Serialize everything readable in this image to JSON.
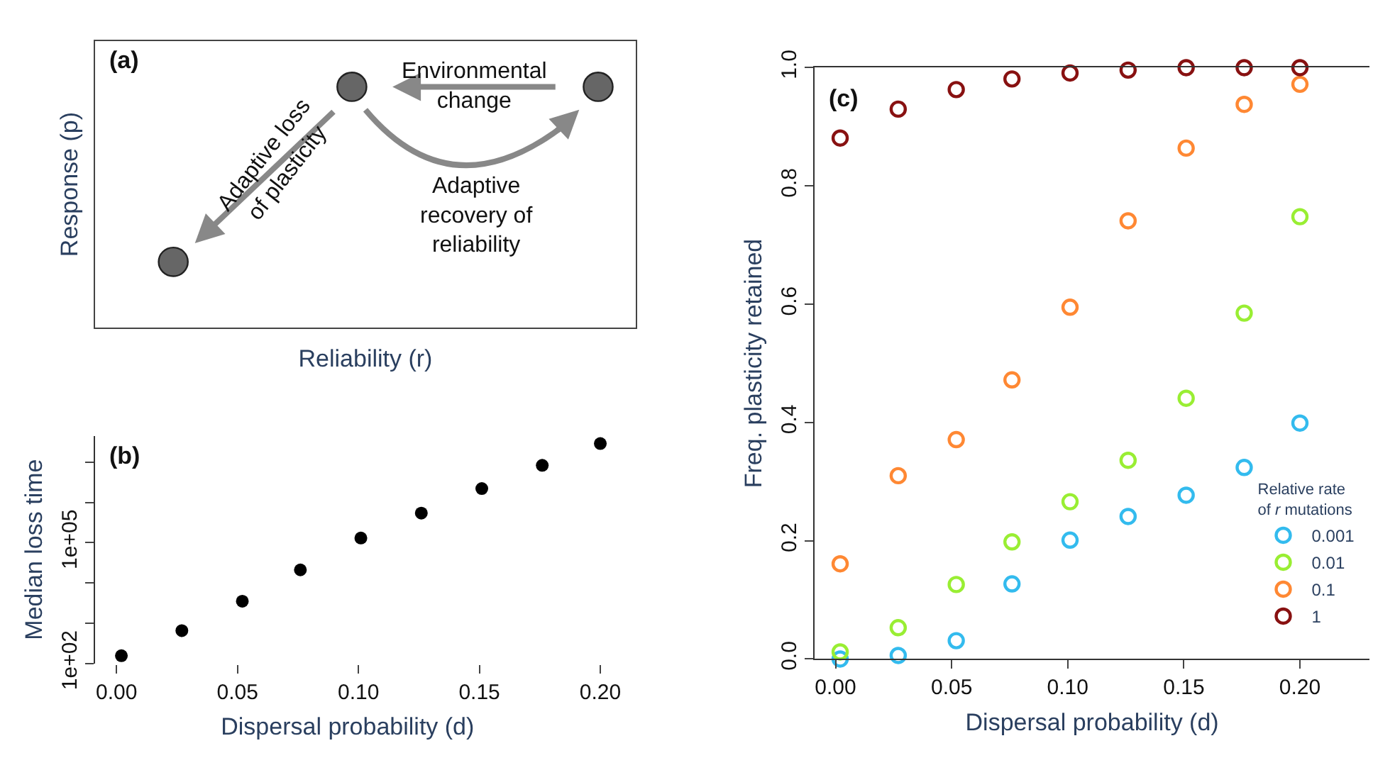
{
  "chart_data": [
    {
      "type": "other",
      "title": "(a)",
      "xlabel": "Reliability (r)",
      "ylabel": "Response (p)",
      "annotations": [
        "Environmental\nchange",
        "Adaptive loss\nof plasticity",
        "Adaptive\nrecovery of\nreliability"
      ]
    },
    {
      "type": "scatter",
      "title": "(b)",
      "xlabel": "Dispersal probability (d)",
      "ylabel": "Median loss time",
      "log": "y",
      "marker": "circle",
      "x": [
        0.002,
        0.027,
        0.052,
        0.076,
        0.101,
        0.126,
        0.151,
        0.176,
        0.2
      ],
      "series": [
        {
          "color": "#000000",
          "values": [
            155,
            650,
            3500,
            21000,
            130000,
            540000,
            2200000,
            8300000,
            29000000
          ]
        }
      ],
      "xlim": [
        -0.009,
        0.2
      ],
      "ylim": [
        100,
        45000000
      ],
      "xticks": [
        {
          "value": 0,
          "label": "0.00"
        },
        {
          "value": 0.05,
          "label": "0.05"
        },
        {
          "value": 0.1,
          "label": "0.10"
        },
        {
          "value": 0.15,
          "label": "0.15"
        },
        {
          "value": 0.2,
          "label": "0.20"
        }
      ],
      "yticks": [
        {
          "value": 100,
          "label": "1e+02"
        },
        {
          "value": 1000,
          "label": null
        },
        {
          "value": 10000,
          "label": null
        },
        {
          "value": 100000,
          "label": "1e+05"
        },
        {
          "value": 1000000,
          "label": null
        },
        {
          "value": 10000000,
          "label": null
        }
      ],
      "legend": false
    },
    {
      "type": "scatter",
      "title": "(c)",
      "xlabel": "Dispersal probability (d)",
      "ylabel": "Freq. plasticity retained",
      "marker": "circle",
      "legend_title": "Relative rate\nof r mutations",
      "x": [
        0.002,
        0.027,
        0.052,
        0.076,
        0.101,
        0.126,
        0.151,
        0.176,
        0.2
      ],
      "series": [
        {
          "name": "0.001",
          "color": "#33bbee",
          "values": [
            0.0,
            0.006,
            0.031,
            0.127,
            0.201,
            0.241,
            0.277,
            0.324,
            0.399
          ]
        },
        {
          "name": "0.01",
          "color": "#99ee33",
          "values": [
            0.012,
            0.053,
            0.126,
            0.198,
            0.266,
            0.336,
            0.441,
            0.585,
            0.748
          ]
        },
        {
          "name": "0.1",
          "color": "#ff8833",
          "values": [
            0.161,
            0.31,
            0.371,
            0.472,
            0.595,
            0.741,
            0.864,
            0.938,
            0.972
          ]
        },
        {
          "name": "1",
          "color": "#881111",
          "values": [
            0.881,
            0.93,
            0.963,
            0.981,
            0.991,
            0.996,
            1.0,
            1.0,
            1.0
          ]
        }
      ],
      "xlim": [
        -0.009,
        0.23
      ],
      "ylim": [
        0,
        1
      ],
      "xticks": [
        {
          "value": 0,
          "label": "0.00"
        },
        {
          "value": 0.05,
          "label": "0.05"
        },
        {
          "value": 0.1,
          "label": "0.10"
        },
        {
          "value": 0.15,
          "label": "0.15"
        },
        {
          "value": 0.2,
          "label": "0.20"
        }
      ],
      "yticks": [
        {
          "value": 0,
          "label": "0.0"
        },
        {
          "value": 0.2,
          "label": "0.2"
        },
        {
          "value": 0.4,
          "label": "0.4"
        },
        {
          "value": 0.6,
          "label": "0.6"
        },
        {
          "value": 0.8,
          "label": "0.8"
        },
        {
          "value": 1,
          "label": "1.0"
        }
      ],
      "legend": "bottom right"
    }
  ]
}
